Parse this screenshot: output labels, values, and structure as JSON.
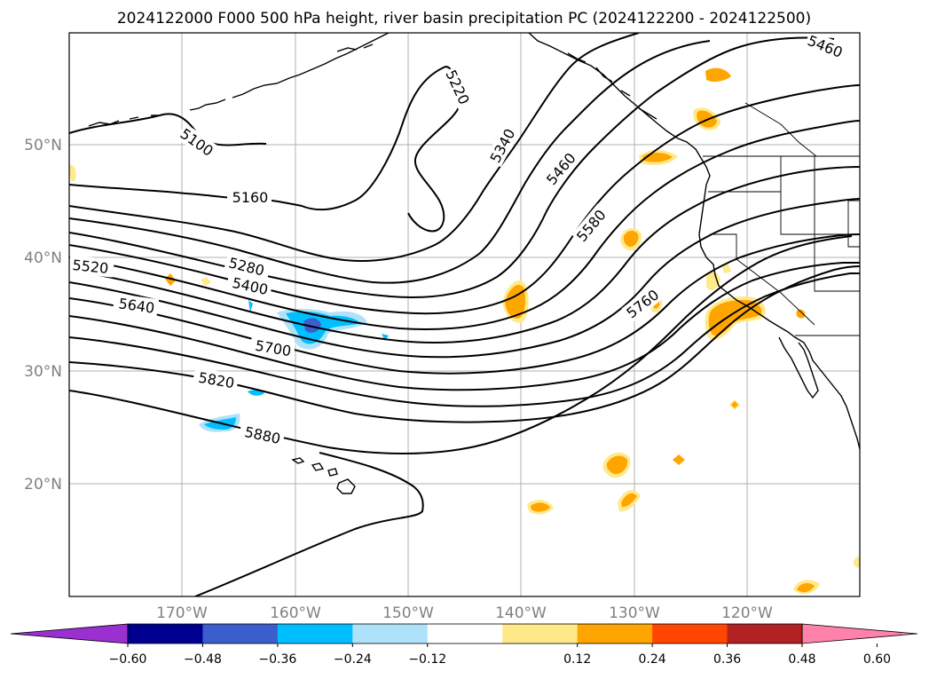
{
  "title": "2024122000 F000 500 hPa height, river basin precipitation PC (2024122200 - 2024122500)",
  "lat_labels": [
    "50°N",
    "40°N",
    "30°N",
    "20°N"
  ],
  "lon_labels": [
    "170°W",
    "160°W",
    "150°W",
    "140°W",
    "130°W",
    "120°W"
  ],
  "contour_labels": [
    "5100",
    "5160",
    "5220",
    "5280",
    "5340",
    "5400",
    "5460",
    "5460",
    "5520",
    "5580",
    "5640",
    "5700",
    "5760",
    "5820",
    "5880"
  ],
  "colorbar": {
    "ticks": [
      "−0.60",
      "−0.48",
      "−0.36",
      "−0.24",
      "−0.12",
      "0.12",
      "0.24",
      "0.36",
      "0.48",
      "0.60"
    ],
    "colors": {
      "under": "#9b30d0",
      "bins": [
        "#000090",
        "#3a5fcd",
        "#00bfff",
        "#aee2fa",
        "#ffffff",
        "#ffe98a",
        "#ffa500",
        "#ff4500",
        "#b22222"
      ],
      "over": "#ff82ab"
    }
  }
}
